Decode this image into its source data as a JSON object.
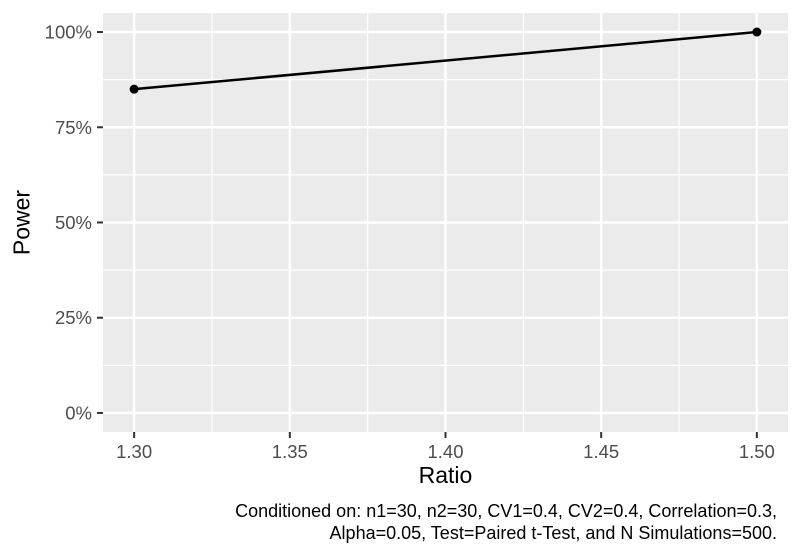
{
  "figure": {
    "background": "#FFFFFF",
    "panel_bg": "#EBEBEB",
    "grid_color": "#FFFFFF",
    "tick_mark_color": "#333333",
    "tick_label_color": "#4D4D4D",
    "axis_title_color": "#000000",
    "caption_color": "#000000"
  },
  "chart_data": {
    "type": "line",
    "xlabel": "Ratio",
    "ylabel": "Power",
    "x": [
      1.3,
      1.5
    ],
    "series": [
      {
        "name": "Power",
        "values": [
          85,
          100
        ]
      }
    ],
    "points": [
      {
        "x": 1.3,
        "y_percent": 85
      },
      {
        "x": 1.5,
        "y_percent": 100
      }
    ],
    "line_color": "#000000",
    "point_color": "#000000",
    "xlim": [
      1.29,
      1.51
    ],
    "ylim": [
      -5,
      105
    ],
    "x_major_ticks": [
      1.3,
      1.35,
      1.4,
      1.45,
      1.5
    ],
    "x_tick_labels": [
      "1.30",
      "1.35",
      "1.40",
      "1.45",
      "1.50"
    ],
    "x_minor_ticks": [
      1.325,
      1.375,
      1.425,
      1.475
    ],
    "y_major_ticks": [
      0,
      25,
      50,
      75,
      100
    ],
    "y_tick_labels": [
      "0%",
      "25%",
      "50%",
      "75%",
      "100%"
    ],
    "y_minor_ticks": [
      12.5,
      37.5,
      62.5,
      87.5
    ],
    "grid": true,
    "legend": false,
    "caption_align": "right",
    "caption_lines": [
      "Conditioned on: n1=30, n2=30, CV1=0.4, CV2=0.4, Correlation=0.3,",
      "Alpha=0.05, Test=Paired t-Test, and N Simulations=500."
    ]
  }
}
